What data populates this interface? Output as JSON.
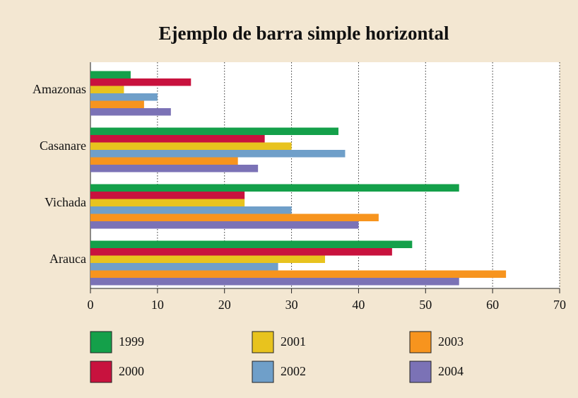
{
  "chart_data": {
    "type": "bar",
    "orientation": "horizontal",
    "title": "Ejemplo de barra simple horizontal",
    "categories": [
      "Amazonas",
      "Casanare",
      "Vichada",
      "Arauca"
    ],
    "series": [
      {
        "name": "1999",
        "color": "#14a04a",
        "values": [
          6,
          37,
          55,
          48
        ]
      },
      {
        "name": "2000",
        "color": "#c8123e",
        "values": [
          15,
          26,
          23,
          45
        ]
      },
      {
        "name": "2001",
        "color": "#e8c31e",
        "values": [
          5,
          30,
          23,
          35
        ]
      },
      {
        "name": "2002",
        "color": "#6f9fc9",
        "values": [
          10,
          38,
          30,
          28
        ]
      },
      {
        "name": "2003",
        "color": "#f7941e",
        "values": [
          8,
          22,
          43,
          62
        ]
      },
      {
        "name": "2004",
        "color": "#7b72b6",
        "values": [
          12,
          25,
          40,
          55
        ]
      }
    ],
    "xlim": [
      0,
      70
    ],
    "xticks": [
      0,
      10,
      20,
      30,
      40,
      50,
      60,
      70
    ],
    "grid": true,
    "legend": "bottom"
  }
}
